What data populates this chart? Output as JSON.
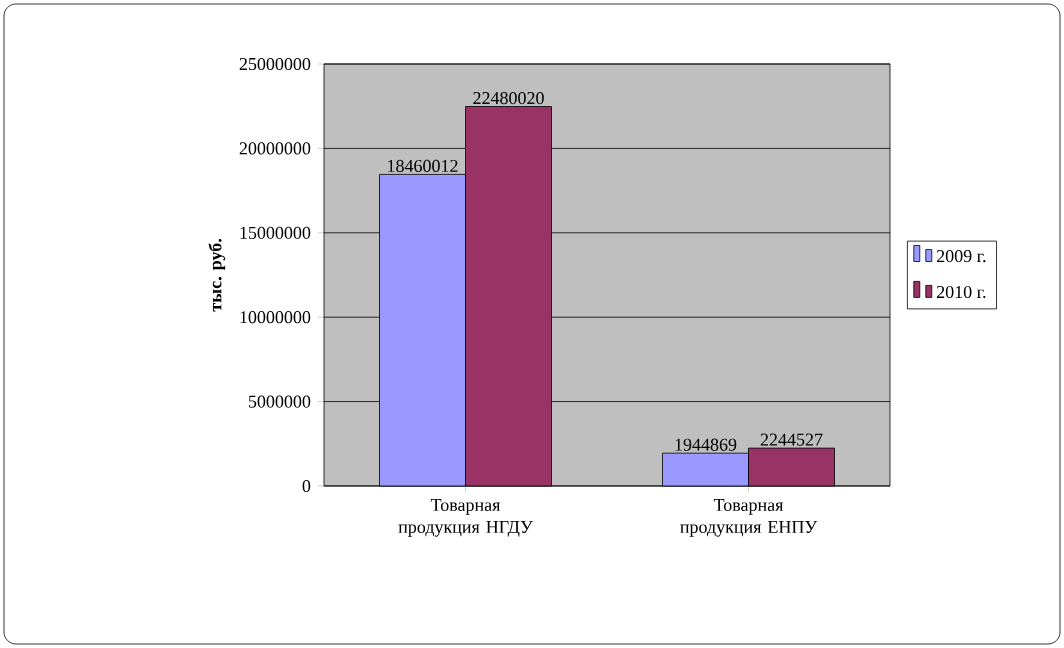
{
  "chart_data": {
    "type": "bar",
    "ylabel": "тыс. руб.",
    "categories": [
      "Товарная продукция НГДУ",
      "Товарная продукция ЕНПУ"
    ],
    "series": [
      {
        "name": "2009 г.",
        "color": "#9999ff",
        "values": [
          18460012,
          1944869
        ]
      },
      {
        "name": "2010 г.",
        "color": "#993366",
        "values": [
          22480020,
          2244527
        ]
      }
    ],
    "ylim": [
      0,
      25000000
    ],
    "yticks": [
      0,
      5000000,
      10000000,
      15000000,
      20000000,
      25000000
    ],
    "grid": "y",
    "legend": "right",
    "data_labels": true
  }
}
